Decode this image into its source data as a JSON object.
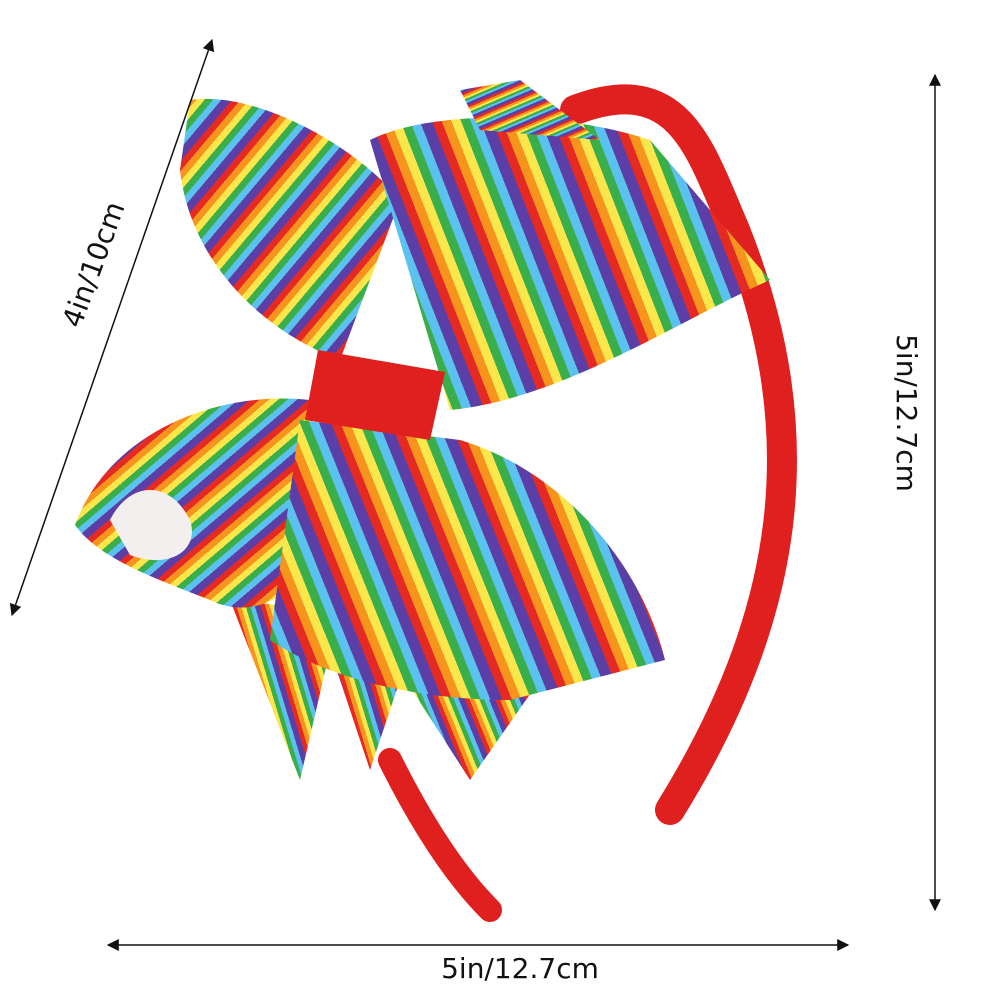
{
  "labels": {
    "diagonal": "4in/10cm",
    "vertical": "5in/12.7cm",
    "horizontal": "5in/12.7cm"
  }
}
